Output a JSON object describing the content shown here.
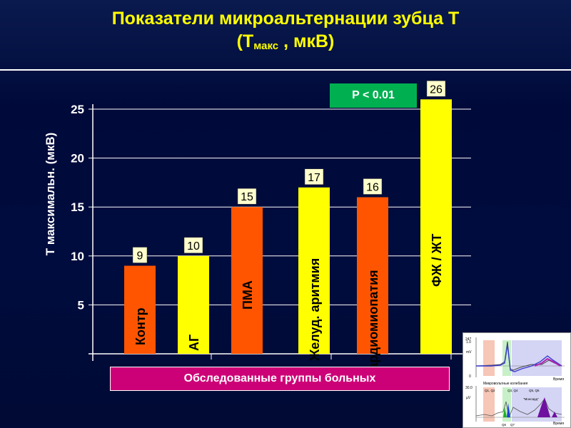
{
  "title": {
    "line1": "Показатели микроальтернации зубца Т",
    "line2_main": "(Т",
    "line2_sub": "макс",
    "line2_tail": " ,  мкВ)"
  },
  "p_value_label": "P < 0.01",
  "xlabel_box": "Обследованные группы больных",
  "chart_data": {
    "type": "bar",
    "categories": [
      "Контр",
      "АГ",
      "ПМА",
      "Желуд.  аритмия",
      "Кардиомиопатия",
      "ФЖ / ЖТ"
    ],
    "values": [
      9,
      10,
      15,
      17,
      16,
      26
    ],
    "bar_colors": [
      "#ff5500",
      "#ffff00",
      "#ff5500",
      "#ffff00",
      "#ff5500",
      "#ffff00"
    ],
    "data_labels": [
      "9",
      "10",
      "15",
      "17",
      "16",
      "26"
    ],
    "ylabel": "Т максимальн.  (мкВ)",
    "xlabel": "Обследованные группы больных",
    "yticks": [
      5,
      10,
      15,
      20,
      25
    ],
    "ylim": [
      0,
      26
    ],
    "grid": true
  },
  "colors": {
    "title": "#ffff00",
    "background": "#000c3e",
    "grid": "#ffffff",
    "p_badge": "#00b050",
    "xlabel_box": "#cc0077"
  },
  "ecg_thumbnail": {
    "top_axis": {
      "ymax": "1.0",
      "ymid": "0",
      "unit": "mV",
      "xlabel": "Время"
    },
    "bottom_caption": "Микровольтные  колебания",
    "bottom_axis": {
      "ymax": "30.0",
      "unit": "µV",
      "xlabel": "Время"
    },
    "markers": [
      "Q1, Q2",
      "Q3, Q4",
      "Q5, Q6",
      "Q6",
      "Q7",
      "\"Монсард\""
    ]
  }
}
